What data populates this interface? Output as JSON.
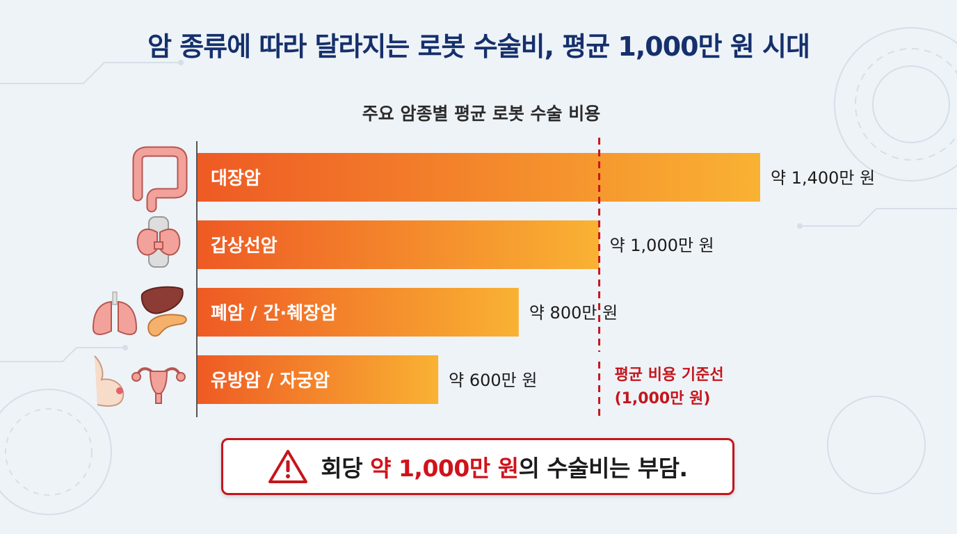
{
  "title": "암 종류에 따라 달라지는 로봇 수술비, 평균 1,000만 원 시대",
  "chart_data": {
    "type": "bar",
    "orientation": "horizontal",
    "title": "주요 암종별 평균 로봇 수술 비용",
    "unit": "만 원",
    "categories": [
      "대장암",
      "갑상선암",
      "폐암 / 간·췌장암",
      "유방암 / 자궁암"
    ],
    "values": [
      1400,
      1000,
      800,
      600
    ],
    "value_labels": [
      "약 1,400만 원",
      "약 1,000만 원",
      "약 800만 원",
      "약 600만 원"
    ],
    "icons": [
      [
        "colon-icon"
      ],
      [
        "thyroid-icon"
      ],
      [
        "lungs-icon",
        "liver-pancreas-icon"
      ],
      [
        "breast-icon",
        "uterus-icon"
      ]
    ],
    "reference_line": {
      "value": 1000,
      "label_line1": "평균 비용 기준선",
      "label_line2": "(1,000만 원)",
      "style": "dashed",
      "color": "#c4161c"
    },
    "xlim": [
      0,
      1400
    ],
    "grid": false,
    "legend": "none",
    "colors": {
      "bar_start": "#ee5a24",
      "bar_end": "#f9b233",
      "axis": "#555555",
      "label": "#ffffff",
      "value_text": "#1b1b1b",
      "reference": "#c4161c"
    }
  },
  "callout": {
    "icon": "warning-triangle-icon",
    "prefix": "회당 ",
    "highlight": "약 1,000만 원",
    "suffix": "의 수술비는 부담."
  }
}
